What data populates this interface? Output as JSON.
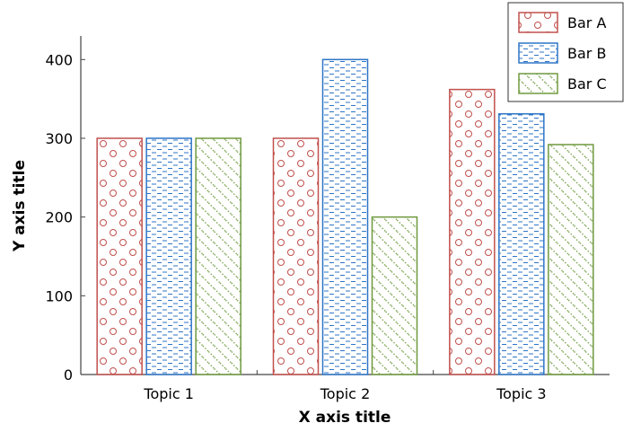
{
  "chart_data": {
    "type": "bar",
    "categories": [
      "Topic 1",
      "Topic 2",
      "Topic 3"
    ],
    "series": [
      {
        "name": "Bar A",
        "values": [
          300,
          300,
          362
        ],
        "color": "#c0504d",
        "pattern": "circles"
      },
      {
        "name": "Bar B",
        "values": [
          300,
          400,
          331
        ],
        "color": "#2e75c7",
        "pattern": "horizontal-dashes"
      },
      {
        "name": "Bar C",
        "values": [
          300,
          200,
          292
        ],
        "color": "#6f9a3e",
        "pattern": "diagonal-dots"
      }
    ],
    "xlabel": "X axis title",
    "ylabel": "Y axis title",
    "ylim": [
      0,
      430
    ],
    "yticks": [
      0,
      100,
      200,
      300,
      400
    ],
    "grid": false,
    "legend_position": "top-right"
  }
}
